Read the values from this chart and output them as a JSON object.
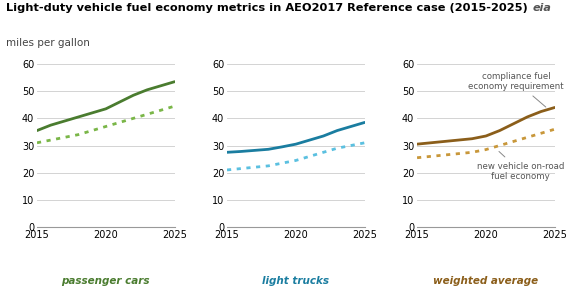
{
  "title": "Light-duty vehicle fuel economy metrics in AEO2017 Reference case (2015-2025)",
  "subtitle": "miles per gallon",
  "years": [
    2015,
    2016,
    2017,
    2018,
    2019,
    2020,
    2021,
    2022,
    2023,
    2024,
    2025
  ],
  "passenger_cars_solid": [
    35.5,
    37.5,
    39.0,
    40.5,
    42.0,
    43.5,
    46.0,
    48.5,
    50.5,
    52.0,
    53.5
  ],
  "passenger_cars_dotted": [
    31.0,
    32.0,
    33.0,
    34.0,
    35.5,
    37.0,
    38.5,
    40.0,
    41.5,
    43.0,
    44.5
  ],
  "light_trucks_solid": [
    27.5,
    27.8,
    28.2,
    28.6,
    29.5,
    30.5,
    32.0,
    33.5,
    35.5,
    37.0,
    38.5
  ],
  "light_trucks_dotted": [
    21.0,
    21.5,
    22.0,
    22.5,
    23.5,
    24.5,
    26.0,
    27.5,
    29.0,
    30.0,
    31.0
  ],
  "weighted_solid": [
    30.5,
    31.0,
    31.5,
    32.0,
    32.5,
    33.5,
    35.5,
    38.0,
    40.5,
    42.5,
    44.0
  ],
  "weighted_dotted": [
    25.5,
    26.0,
    26.5,
    27.0,
    27.5,
    28.5,
    30.0,
    31.5,
    33.0,
    34.5,
    36.0
  ],
  "color_green_dark": "#4a7c2f",
  "color_green_light": "#7ab648",
  "color_blue_dark": "#1a7da0",
  "color_blue_light": "#5bc0e0",
  "color_brown": "#8b5e1a",
  "color_brown_light": "#c8973a",
  "label_cars": "passenger cars",
  "label_trucks": "light trucks",
  "label_weighted": "weighted average",
  "annotation_solid": "compliance fuel\neconomy requirement",
  "annotation_dotted": "new vehicle on-road\nfuel economy",
  "ylim": [
    0,
    60
  ],
  "yticks": [
    0,
    10,
    20,
    30,
    40,
    50,
    60
  ],
  "xticks": [
    2015,
    2020,
    2025
  ],
  "bg_color": "#ffffff",
  "grid_color": "#cccccc",
  "spine_color": "#999999"
}
